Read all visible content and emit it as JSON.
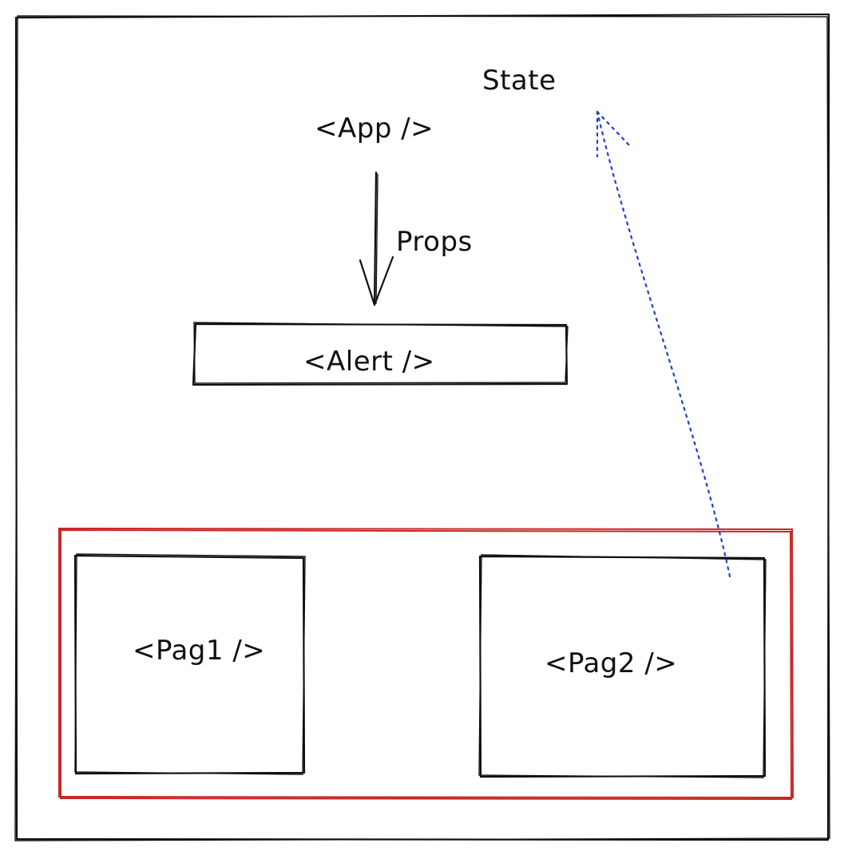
{
  "labels": {
    "state": "State",
    "app": "<App />",
    "props": "Props",
    "alert": "<Alert />",
    "pag1": "<Pag1 />",
    "pag2": "<Pag2 />"
  },
  "colors": {
    "ink": "#111111",
    "container": "#c62828",
    "state_flow": "#1e3fd0"
  }
}
